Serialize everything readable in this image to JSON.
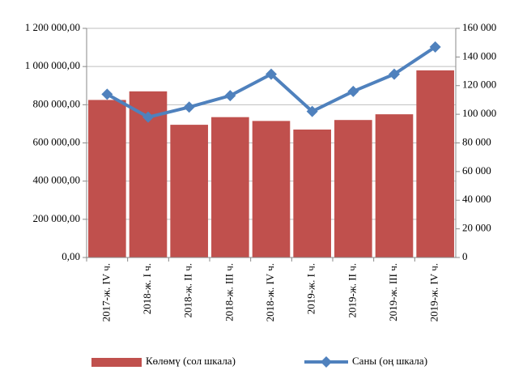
{
  "chart_data": {
    "type": "bar",
    "categories": [
      "2017-ж. IV ч.",
      "2018-ж. I ч.",
      "2018-ж. II ч.",
      "2018-ж. III ч.",
      "2018-ж. IV ч.",
      "2019-ж. I ч.",
      "2019-ж. II ч.",
      "2019-ж. III ч.",
      "2019-ж. IV ч."
    ],
    "series": [
      {
        "name": "Көлөмү (сол шкала)",
        "type": "bar",
        "color": "#c0504d",
        "values": [
          825000,
          870000,
          695000,
          735000,
          715000,
          670000,
          720000,
          750000,
          980000
        ]
      },
      {
        "name": "Саны (оң шкала)",
        "type": "line",
        "axis": "y2",
        "color": "#4f81bd",
        "values": [
          114000,
          98000,
          105000,
          113000,
          128000,
          102000,
          116000,
          128000,
          147000
        ]
      }
    ],
    "ylim": [
      0,
      1200000
    ],
    "yticks": [
      {
        "value": 0,
        "label": "0,00"
      },
      {
        "value": 200000,
        "label": "200 000,00"
      },
      {
        "value": 400000,
        "label": "400 000,00"
      },
      {
        "value": 600000,
        "label": "600 000,00"
      },
      {
        "value": 800000,
        "label": "800 000,00"
      },
      {
        "value": 1000000,
        "label": "1 000 000,00"
      },
      {
        "value": 1200000,
        "label": "1 200 000,00"
      }
    ],
    "y2lim": [
      0,
      160000
    ],
    "y2ticks": [
      0,
      {
        "value": 20000,
        "label": "20 000"
      },
      {
        "value": 40000,
        "label": "40 000"
      },
      {
        "value": 60000,
        "label": "60 000"
      },
      {
        "value": 80000,
        "label": "80 000"
      },
      {
        "value": 100000,
        "label": "100 000"
      },
      {
        "value": 120000,
        "label": "120 000"
      },
      {
        "value": 140000,
        "label": "140 000"
      },
      {
        "value": 160000,
        "label": "160 000"
      }
    ],
    "grid": true,
    "legend": "bottom"
  }
}
